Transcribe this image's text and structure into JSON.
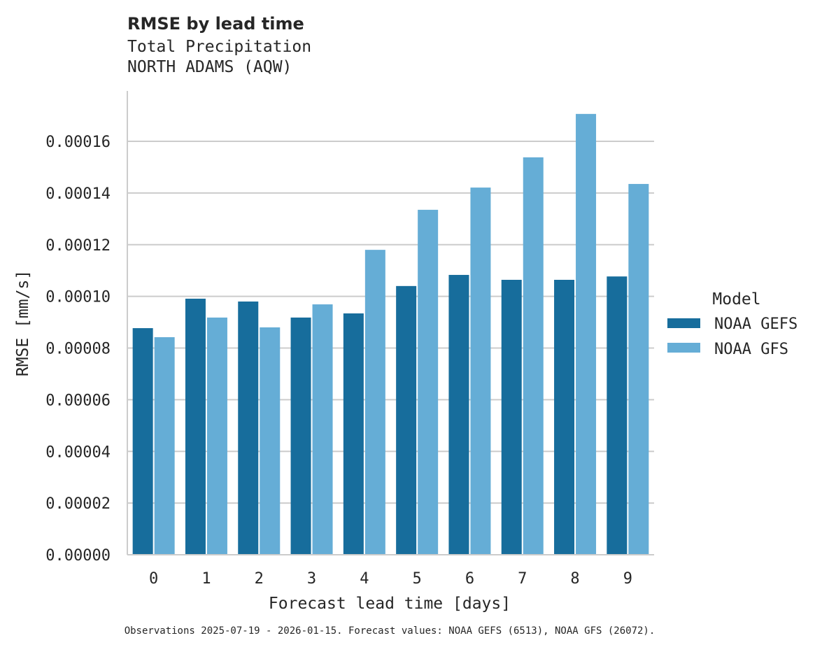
{
  "chart_data": {
    "type": "bar",
    "title": "RMSE by lead time",
    "subtitle_lines": [
      "Total Precipitation",
      "NORTH ADAMS (AQW)"
    ],
    "xlabel": "Forecast lead time [days]",
    "ylabel": "RMSE [mm/s]",
    "categories": [
      "0",
      "1",
      "2",
      "3",
      "4",
      "5",
      "6",
      "7",
      "8",
      "9"
    ],
    "ylim": [
      0,
      0.000179
    ],
    "yticks": [
      "0.00000",
      "0.00002",
      "0.00004",
      "0.00006",
      "0.00008",
      "0.00010",
      "0.00012",
      "0.00014",
      "0.00016"
    ],
    "grid": true,
    "legend": {
      "title": "Model",
      "placement": "right"
    },
    "series": [
      {
        "name": "NOAA GEFS",
        "color": "#176d9c",
        "values": [
          8.77e-05,
          9.91e-05,
          9.8e-05,
          9.18e-05,
          9.34e-05,
          0.000104,
          0.0001083,
          0.0001064,
          0.0001064,
          0.0001077
        ]
      },
      {
        "name": "NOAA GFS",
        "color": "#65add6",
        "values": [
          8.42e-05,
          9.18e-05,
          8.8e-05,
          9.69e-05,
          0.000118,
          0.0001335,
          0.0001421,
          0.0001538,
          0.0001706,
          0.0001435
        ]
      }
    ],
    "footnote": "Observations 2025-07-19 - 2026-01-15. Forecast values: NOAA GEFS (6513), NOAA GFS (26072)."
  }
}
